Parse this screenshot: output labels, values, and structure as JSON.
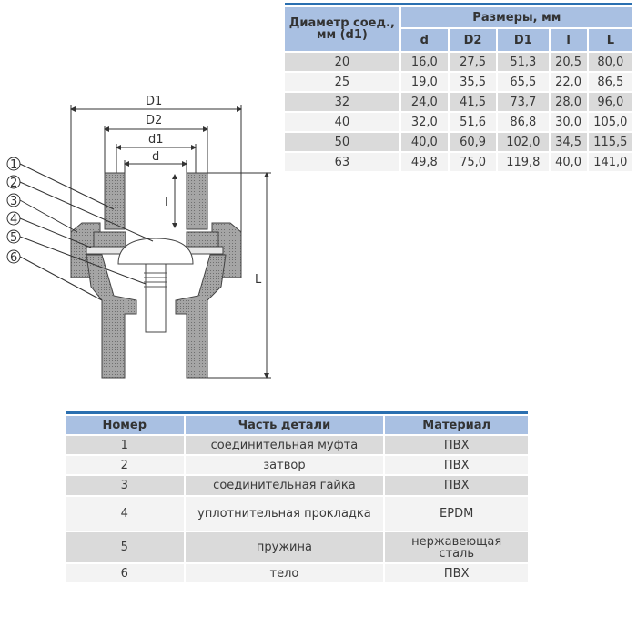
{
  "drawing": {
    "dimension_labels": {
      "D1": "D1",
      "D2": "D2",
      "d1": "d1",
      "d": "d",
      "l": "l",
      "L": "L"
    },
    "callouts": [
      "1",
      "2",
      "3",
      "4",
      "5",
      "6"
    ]
  },
  "dimensions_table": {
    "header_col0": "Диаметр соед., мм (d1)",
    "header_group": "Размеры, мм",
    "columns": [
      "d",
      "D2",
      "D1",
      "l",
      "L"
    ],
    "rows": [
      [
        "20",
        "16,0",
        "27,5",
        "51,3",
        "20,5",
        "80,0"
      ],
      [
        "25",
        "19,0",
        "35,5",
        "65,5",
        "22,0",
        "86,5"
      ],
      [
        "32",
        "24,0",
        "41,5",
        "73,7",
        "28,0",
        "96,0"
      ],
      [
        "40",
        "32,0",
        "51,6",
        "86,8",
        "30,0",
        "105,0"
      ],
      [
        "50",
        "40,0",
        "60,9",
        "102,0",
        "34,5",
        "115,5"
      ],
      [
        "63",
        "49,8",
        "75,0",
        "119,8",
        "40,0",
        "141,0"
      ]
    ]
  },
  "parts_table": {
    "headers": [
      "Номер",
      "Часть детали",
      "Материал"
    ],
    "rows": [
      [
        "1",
        "соединительная муфта",
        "ПВХ"
      ],
      [
        "2",
        "затвор",
        "ПВХ"
      ],
      [
        "3",
        "соединительная гайка",
        "ПВХ"
      ],
      [
        "4",
        "уплотнительная прокладка",
        "EPDM"
      ],
      [
        "5",
        "пружина",
        "нержавеющая сталь"
      ],
      [
        "6",
        "тело",
        "ПВХ"
      ]
    ]
  },
  "colors": {
    "accent": "#2a6fb0",
    "header": "#a9c0e2",
    "row_dark": "#dadada",
    "row_light": "#f3f3f3",
    "part_fill": "#9a9a9a"
  }
}
